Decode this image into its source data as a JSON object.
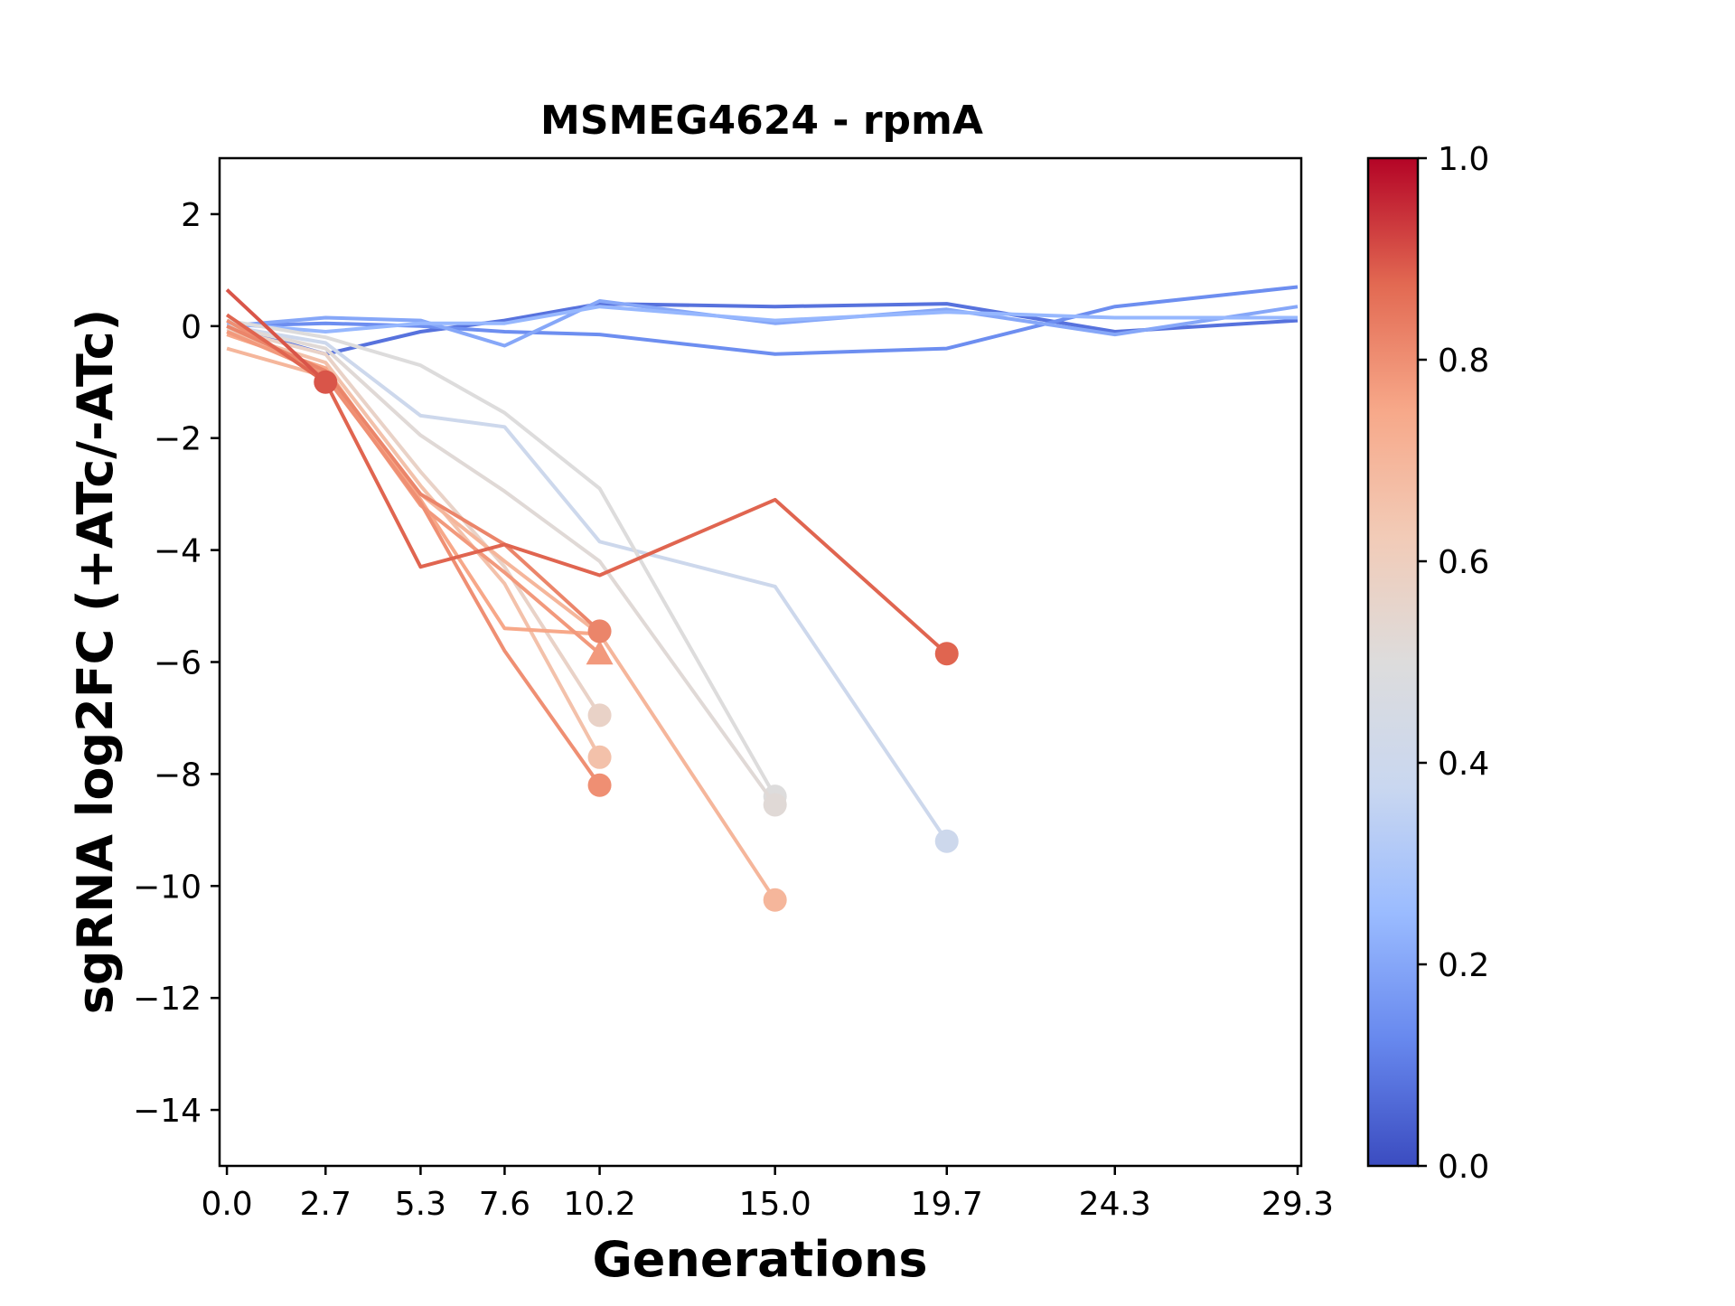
{
  "chart_data": {
    "type": "line",
    "title": "MSMEG4624 - rpmA",
    "xlabel": "Generations",
    "ylabel": "sgRNA log2FC (+ATc/-ATc)",
    "x_ticks": [
      "0.0",
      "2.7",
      "5.3",
      "7.6",
      "10.2",
      "15.0",
      "19.7",
      "24.3",
      "29.3"
    ],
    "y_ticks": [
      2,
      0,
      -2,
      -4,
      -6,
      -8,
      -10,
      -12,
      -14
    ],
    "y_tick_labels": [
      "2",
      "0",
      "−2",
      "−4",
      "−6",
      "−8",
      "−10",
      "−12",
      "−14"
    ],
    "xlim": [
      -0.2,
      29.4
    ],
    "ylim": [
      -15,
      3
    ],
    "grid": false,
    "legend": "none",
    "colorbar": {
      "colormap": "coolwarm",
      "range": [
        0.0,
        1.0
      ],
      "ticks": [
        0.0,
        0.2,
        0.4,
        0.6,
        0.8,
        1.0
      ],
      "tick_labels": [
        "0.0",
        "0.2",
        "0.4",
        "0.6",
        "0.8",
        "1.0"
      ],
      "colors": [
        "#3b4cc0",
        "#6788ee",
        "#9abbff",
        "#c9d7f0",
        "#dddcdc",
        "#f2cbb7",
        "#f7a889",
        "#e26952",
        "#b40426"
      ]
    },
    "series": [
      {
        "color_value": 0.08,
        "x": [
          0.0,
          2.7,
          5.3,
          7.6,
          10.2,
          15.0,
          19.7,
          24.3,
          29.3
        ],
        "y": [
          0.0,
          -0.5,
          -0.1,
          0.1,
          0.4,
          0.35,
          0.4,
          -0.1,
          0.1
        ],
        "end_marker": "none"
      },
      {
        "color_value": 0.14,
        "x": [
          0.0,
          2.7,
          5.3,
          7.6,
          10.2,
          15.0,
          19.7,
          24.3,
          29.3
        ],
        "y": [
          0.0,
          0.05,
          0.0,
          -0.1,
          -0.15,
          -0.5,
          -0.4,
          0.35,
          0.7
        ],
        "end_marker": "none"
      },
      {
        "color_value": 0.2,
        "x": [
          0.0,
          2.7,
          5.3,
          7.6,
          10.2,
          15.0,
          19.7,
          24.3,
          29.3
        ],
        "y": [
          0.0,
          0.15,
          0.1,
          -0.35,
          0.45,
          0.05,
          0.3,
          -0.15,
          0.35
        ],
        "end_marker": "none"
      },
      {
        "color_value": 0.24,
        "x": [
          0.0,
          2.7,
          5.3,
          7.6,
          10.2,
          15.0,
          19.7,
          24.3,
          29.3
        ],
        "y": [
          0.05,
          -0.1,
          0.05,
          0.05,
          0.35,
          0.1,
          0.25,
          0.15,
          0.15
        ],
        "end_marker": "none"
      },
      {
        "color_value": 0.4,
        "x": [
          0.0,
          2.7,
          5.3,
          7.6,
          10.2,
          15.0,
          19.7
        ],
        "y": [
          0.0,
          -0.3,
          -1.6,
          -1.8,
          -3.85,
          -4.65,
          -9.2
        ],
        "end_marker": "circle"
      },
      {
        "color_value": 0.5,
        "x": [
          0.0,
          2.7,
          5.3,
          7.6,
          10.2,
          15.0
        ],
        "y": [
          0.1,
          -0.2,
          -0.7,
          -1.55,
          -2.9,
          -8.4
        ],
        "end_marker": "circle"
      },
      {
        "color_value": 0.52,
        "x": [
          0.0,
          2.7,
          5.3,
          7.6,
          10.2,
          15.0
        ],
        "y": [
          0.0,
          -0.4,
          -1.95,
          -2.95,
          -4.2,
          -8.55
        ],
        "end_marker": "circle"
      },
      {
        "color_value": 0.57,
        "x": [
          0.0,
          2.7,
          5.3,
          7.6,
          10.2
        ],
        "y": [
          -0.05,
          -0.5,
          -2.6,
          -4.3,
          -6.95
        ],
        "end_marker": "circle"
      },
      {
        "color_value": 0.66,
        "x": [
          0.0,
          2.7,
          5.3,
          7.6,
          10.2
        ],
        "y": [
          -0.1,
          -0.65,
          -2.85,
          -4.6,
          -7.7
        ],
        "end_marker": "circle"
      },
      {
        "color_value": 0.7,
        "x": [
          0.0,
          2.7,
          5.3,
          7.6,
          10.2,
          15.0
        ],
        "y": [
          -0.4,
          -0.9,
          -3.0,
          -4.2,
          -5.5,
          -10.25
        ],
        "end_marker": "circle"
      },
      {
        "color_value": 0.75,
        "x": [
          0.0,
          2.7,
          5.3,
          7.6,
          10.2
        ],
        "y": [
          -0.15,
          -0.75,
          -3.1,
          -5.4,
          -5.5
        ],
        "end_marker": "none"
      },
      {
        "color_value": 0.78,
        "x": [
          0.0,
          2.7,
          5.3,
          7.6,
          10.2
        ],
        "y": [
          -0.1,
          -0.85,
          -3.2,
          -4.4,
          -5.85
        ],
        "end_marker": "triangle"
      },
      {
        "color_value": 0.8,
        "x": [
          0.0,
          2.7,
          5.3,
          7.6,
          10.2
        ],
        "y": [
          0.1,
          -0.9,
          -3.15,
          -5.8,
          -8.2
        ],
        "end_marker": "circle"
      },
      {
        "color_value": 0.82,
        "x": [
          0.0,
          2.7,
          5.3,
          7.6,
          10.2
        ],
        "y": [
          0.0,
          -0.8,
          -3.0,
          -3.9,
          -5.45
        ],
        "end_marker": "circle"
      },
      {
        "color_value": 0.88,
        "x": [
          0.0,
          2.7,
          5.3,
          7.6,
          10.2,
          15.0,
          19.7
        ],
        "y": [
          0.2,
          -1.0,
          -4.3,
          -3.9,
          -4.45,
          -3.1,
          -5.85
        ],
        "end_marker": "circle"
      },
      {
        "color_value": 0.9,
        "x": [
          0.0,
          2.7
        ],
        "y": [
          0.65,
          -1.0
        ],
        "end_marker": "circle"
      }
    ]
  }
}
